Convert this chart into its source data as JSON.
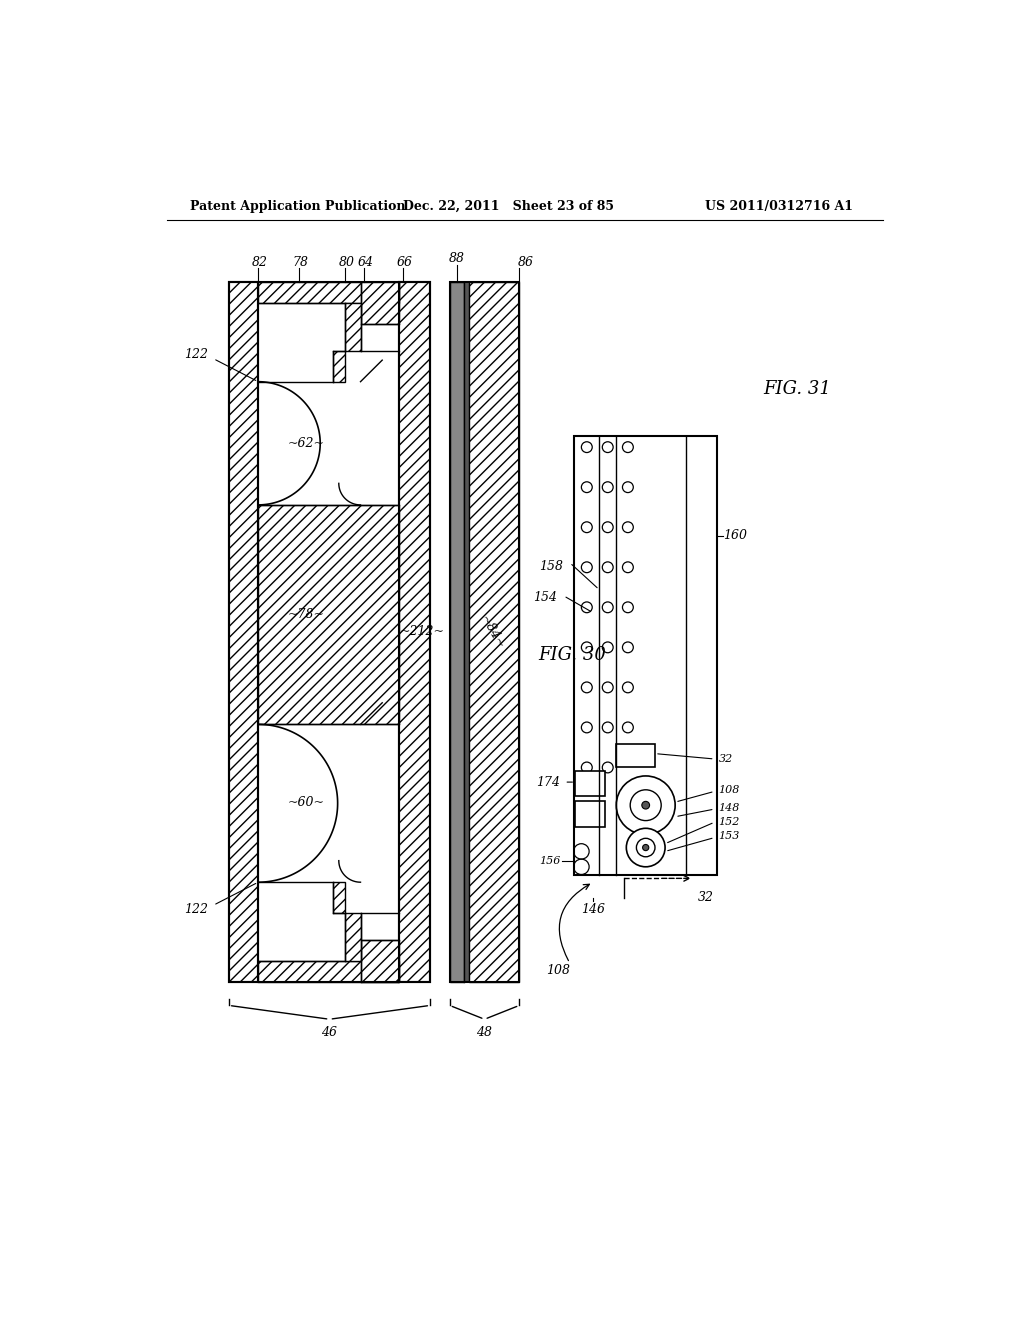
{
  "title_left": "Patent Application Publication",
  "title_mid": "Dec. 22, 2011   Sheet 23 of 85",
  "title_right": "US 2011/0312716 A1",
  "bg_color": "#ffffff",
  "line_color": "#000000",
  "fig30_label": "FIG. 30",
  "fig31_label": "FIG. 31",
  "label_82": "82",
  "label_78": "78",
  "label_80": "80",
  "label_64": "64",
  "label_66": "66",
  "label_88": "88",
  "label_86": "86",
  "label_122a": "122",
  "label_122b": "122",
  "label_62": "~62~",
  "label_78m": "~78~",
  "label_60": "~60~",
  "label_212": "~212~",
  "label_84": "~84~",
  "label_46": "46",
  "label_48": "48",
  "label_160": "160",
  "label_158": "158",
  "label_154": "154",
  "label_174": "174",
  "label_108": "108",
  "label_32a": "32",
  "label_32b": "32",
  "label_146": "146",
  "label_156": "156",
  "label_105": "108",
  "label_148": "148",
  "label_152": "152",
  "label_153": "153"
}
